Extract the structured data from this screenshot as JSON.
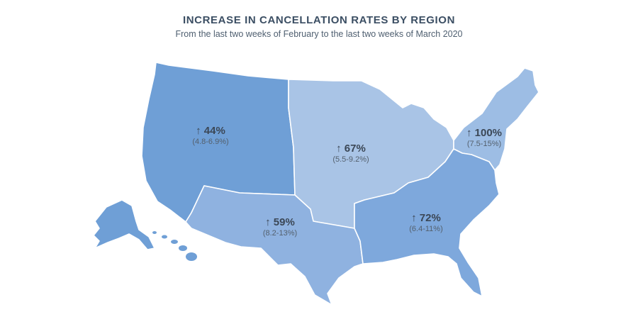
{
  "header": {
    "title": "INCREASE IN CANCELLATION RATES BY REGION",
    "subtitle": "From the last two weeks of February to the last two weeks of March 2020"
  },
  "colors": {
    "west": "#6f9fd6",
    "midwest": "#a9c4e6",
    "southwest": "#8fb2e0",
    "southeast": "#7ea8dc",
    "northeast": "#9dbde4",
    "text": "#3b4756"
  },
  "regions": [
    {
      "id": "west",
      "increase": "↑ 44%",
      "range": "(4.8-6.9%)"
    },
    {
      "id": "midwest",
      "increase": "↑ 67%",
      "range": "(5.5-9.2%)"
    },
    {
      "id": "northeast",
      "increase": "↑ 100%",
      "range": "(7.5-15%)"
    },
    {
      "id": "southwest",
      "increase": "↑ 59%",
      "range": "(8.2-13%)"
    },
    {
      "id": "southeast",
      "increase": "↑ 72%",
      "range": "(6.4-11%)"
    }
  ]
}
